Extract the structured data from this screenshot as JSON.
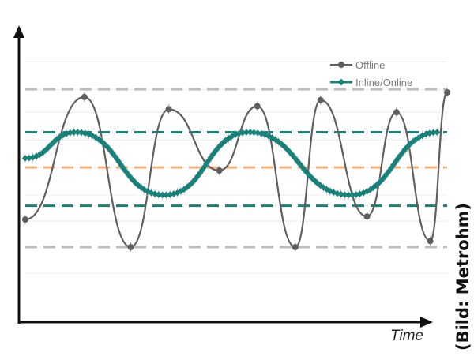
{
  "chart_data": {
    "type": "line",
    "title": "",
    "xlabel": "Time",
    "ylabel": "",
    "xlim": [
      0,
      1
    ],
    "ylim": [
      0,
      10
    ],
    "grid": true,
    "legend_position": "top-right",
    "reference_lines": [
      {
        "value": 7.65,
        "color": "#bdbdbd",
        "style": "dashed"
      },
      {
        "value": 6.25,
        "color": "#17817a",
        "style": "dashed"
      },
      {
        "value": 5.1,
        "color": "#f2b07a",
        "style": "dashed"
      },
      {
        "value": 3.85,
        "color": "#17817a",
        "style": "dashed"
      },
      {
        "value": 2.5,
        "color": "#bdbdbd",
        "style": "dashed"
      }
    ],
    "series": [
      {
        "name": "Offline",
        "color": "#5f5f5f",
        "x": [
          0.0,
          0.14,
          0.25,
          0.34,
          0.46,
          0.55,
          0.64,
          0.7,
          0.81,
          0.88,
          0.96,
          1.0
        ],
        "y": [
          3.4,
          7.4,
          2.5,
          7.0,
          5.0,
          7.1,
          2.5,
          7.3,
          3.5,
          6.9,
          2.7,
          7.55
        ]
      },
      {
        "name": "Inline/Online",
        "color": "#17817a",
        "x": [
          0.0,
          0.12,
          0.33,
          0.53,
          0.77,
          0.98
        ],
        "y": [
          5.4,
          6.25,
          4.2,
          6.25,
          4.2,
          6.25
        ]
      }
    ],
    "annotations": [
      "(Bild: Metrohm)"
    ]
  }
}
